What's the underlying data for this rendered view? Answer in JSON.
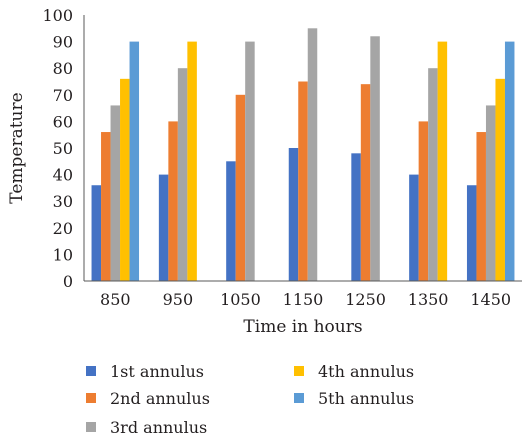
{
  "chart_data": {
    "type": "bar",
    "categories": [
      "850",
      "950",
      "1050",
      "1150",
      "1250",
      "1350",
      "1450"
    ],
    "series": [
      {
        "name": "1st annulus",
        "color": "#4472c4",
        "values": [
          36,
          40,
          45,
          50,
          48,
          40,
          36
        ]
      },
      {
        "name": "2nd annulus",
        "color": "#ed7d31",
        "values": [
          56,
          60,
          70,
          75,
          74,
          60,
          56
        ]
      },
      {
        "name": "3rd annulus",
        "color": "#a5a5a5",
        "values": [
          66,
          80,
          90,
          95,
          92,
          80,
          66
        ]
      },
      {
        "name": "4th annulus",
        "color": "#ffc000",
        "values": [
          76,
          90,
          null,
          null,
          null,
          90,
          76
        ]
      },
      {
        "name": "5th annulus",
        "color": "#5b9bd5",
        "values": [
          90,
          null,
          null,
          null,
          null,
          null,
          90
        ]
      }
    ],
    "xlabel": "Time in hours",
    "ylabel": "Temperature",
    "ylim": [
      0,
      100
    ],
    "yticks": [
      "0",
      "10",
      "20",
      "30",
      "40",
      "50",
      "60",
      "70",
      "80",
      "90",
      "100"
    ],
    "grid": false,
    "legend_position": "bottom"
  }
}
